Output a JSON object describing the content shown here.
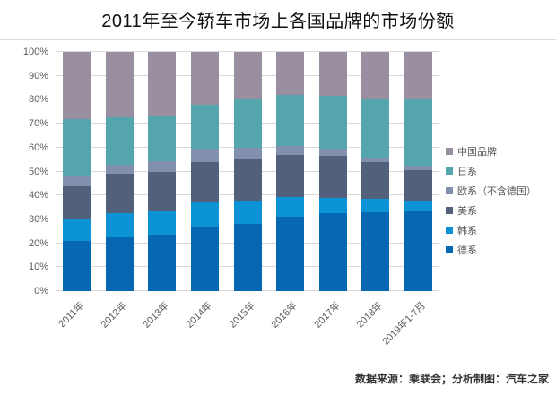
{
  "title": "2011年至今轿车市场上各国品牌的市场份额",
  "footer": "数据来源：乘联会；分析制图：汽车之家",
  "y_axis": {
    "tick_labels": [
      "0%",
      "10%",
      "20%",
      "30%",
      "40%",
      "50%",
      "60%",
      "70%",
      "80%",
      "90%",
      "100%"
    ],
    "text_color": "#595959",
    "gridline_color": "#d9d9d9"
  },
  "chart_data": {
    "type": "bar",
    "subtype": "stacked-100",
    "title": "2011年至今轿车市场上各国品牌的市场份额",
    "xlabel": "",
    "ylabel": "",
    "ylim": [
      0,
      100
    ],
    "y_tick_step": 10,
    "grid": true,
    "legend_position": "right",
    "categories": [
      "2011年",
      "2012年",
      "2013年",
      "2014年",
      "2015年",
      "2016年",
      "2017年",
      "2018年",
      "2019年1-7月"
    ],
    "series": [
      {
        "name": "德系",
        "color": "#0668b2",
        "values": [
          21,
          22.5,
          23.5,
          27,
          28,
          31,
          32.5,
          33,
          33.5
        ]
      },
      {
        "name": "韩系",
        "color": "#0b93d5",
        "values": [
          9,
          10,
          10,
          10.5,
          10,
          8.5,
          6.5,
          5.5,
          4.5
        ]
      },
      {
        "name": "美系",
        "color": "#53607b",
        "values": [
          14,
          16.5,
          16.5,
          16.5,
          17,
          17.5,
          17.5,
          15.5,
          12.5
        ]
      },
      {
        "name": "欧系（不含德国）",
        "color": "#8191ad",
        "values": [
          4.5,
          4,
          4.5,
          5.5,
          5,
          3.5,
          3,
          2,
          2
        ]
      },
      {
        "name": "日系",
        "color": "#55a6ac",
        "values": [
          23.5,
          19.5,
          18.5,
          18.5,
          20,
          21.5,
          22,
          24,
          28
        ]
      },
      {
        "name": "中国品牌",
        "color": "#998fa0",
        "values": [
          28,
          27.5,
          27,
          22,
          20,
          18,
          18.5,
          20,
          19.5
        ]
      }
    ],
    "legend_order_top_to_bottom": [
      "中国品牌",
      "日系",
      "欧系（不含德国）",
      "美系",
      "韩系",
      "德系"
    ]
  }
}
